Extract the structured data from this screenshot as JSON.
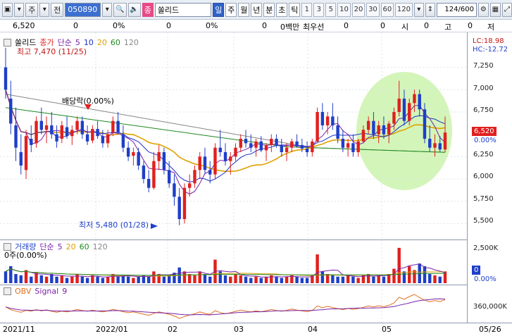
{
  "toolbar": {
    "ju_label": "주",
    "jeon_label": "전",
    "code": "050890",
    "stock_badge": "종",
    "stock_name": "쏠리드",
    "periods": [
      "일",
      "주",
      "월",
      "년",
      "분",
      "초",
      "틱"
    ],
    "active_period": "일",
    "numbers": [
      "1",
      "3",
      "5",
      "10",
      "20",
      "30",
      "60",
      "120"
    ],
    "count": "124",
    "count_total": "/600"
  },
  "infobar": {
    "price": "6,520",
    "v1": "0",
    "v1_pct": "0%",
    "v2": "0",
    "v2_pct": "0%",
    "v3": "0",
    "v3_pct": "0%",
    "amount": "0백만",
    "priority_label": "최우선",
    "v4": "0",
    "v5": "0",
    "si_label": "시",
    "si_value": "0",
    "go_label": "고",
    "go_value": "0",
    "jeo_label": "저"
  },
  "price_panel": {
    "name": "쏠리드",
    "legend": [
      "종가",
      "단순",
      "5",
      "10",
      "20",
      "60",
      "120"
    ],
    "high_label": "최고 7,470 (11/25)",
    "low_label": "최저 5,480 (01/28)",
    "dividend_label": "배당락(0.00%)",
    "lc_label": "LC:18.98",
    "hc_label": "HC:-12.72",
    "current_price": "6,520",
    "current_pct": "0.00%",
    "ticks": [
      "7,250",
      "7,000",
      "6,750",
      "6,250",
      "6,000",
      "5,750",
      "5,500"
    ]
  },
  "volume_panel": {
    "legend": [
      "거래량",
      "단순",
      "5",
      "20",
      "60",
      "120"
    ],
    "sub_label": "0주(0.00%)",
    "tick": "2,500K",
    "current": "0",
    "current_pct": "0.00%"
  },
  "obv_panel": {
    "legend": [
      "OBV",
      "Signal",
      "9"
    ],
    "tick": "360,000K"
  },
  "x_axis": [
    "2021/11",
    "2022/01",
    "02",
    "03",
    "04",
    "05",
    "05/26"
  ],
  "colors": {
    "up": "#e0201e",
    "down": "#1e3fc8",
    "ma5": "#7a22a8",
    "ma10": "#2030c8",
    "ma20": "#e0a000",
    "ma60": "#208a20",
    "ma120": "#888888",
    "highlight": "#c8f2a8"
  },
  "chart_data": {
    "type": "candlestick",
    "y_range": [
      5400,
      7500
    ],
    "candles_ohlc": [
      [
        7250,
        7470,
        6900,
        7000
      ],
      [
        6900,
        7100,
        6500,
        6620
      ],
      [
        6600,
        6800,
        6200,
        6350
      ],
      [
        6300,
        6500,
        6050,
        6150
      ],
      [
        6100,
        6550,
        6000,
        6480
      ],
      [
        6450,
        6600,
        6300,
        6380
      ],
      [
        6400,
        6700,
        6350,
        6650
      ],
      [
        6650,
        6800,
        6500,
        6550
      ],
      [
        6550,
        6700,
        6400,
        6600
      ],
      [
        6600,
        6750,
        6450,
        6500
      ],
      [
        6500,
        6600,
        6350,
        6420
      ],
      [
        6450,
        6650,
        6400,
        6600
      ],
      [
        6580,
        6700,
        6450,
        6480
      ],
      [
        6480,
        6600,
        6380,
        6550
      ],
      [
        6550,
        6700,
        6500,
        6650
      ],
      [
        6650,
        6700,
        6450,
        6500
      ],
      [
        6500,
        6600,
        6380,
        6420
      ],
      [
        6430,
        6600,
        6400,
        6560
      ],
      [
        6560,
        6650,
        6450,
        6480
      ],
      [
        6480,
        6550,
        6350,
        6400
      ],
      [
        6400,
        6550,
        6350,
        6500
      ],
      [
        6520,
        6700,
        6480,
        6650
      ],
      [
        6650,
        6750,
        6500,
        6520
      ],
      [
        6500,
        6600,
        6300,
        6350
      ],
      [
        6350,
        6420,
        6200,
        6250
      ],
      [
        6260,
        6350,
        6150,
        6300
      ],
      [
        6300,
        6350,
        6100,
        6150
      ],
      [
        6150,
        6200,
        5950,
        6000
      ],
      [
        6000,
        6100,
        5850,
        5900
      ],
      [
        5900,
        6300,
        5880,
        6200
      ],
      [
        6200,
        6380,
        6100,
        6300
      ],
      [
        6300,
        6350,
        6050,
        6100
      ],
      [
        6100,
        6200,
        5900,
        5950
      ],
      [
        5950,
        6050,
        5700,
        5800
      ],
      [
        5800,
        5900,
        5480,
        5550
      ],
      [
        5550,
        5950,
        5500,
        5900
      ],
      [
        5900,
        6050,
        5800,
        5950
      ],
      [
        5950,
        6150,
        5900,
        6100
      ],
      [
        6100,
        6300,
        6000,
        6250
      ],
      [
        6250,
        6350,
        6050,
        6100
      ],
      [
        6100,
        6200,
        5950,
        6050
      ],
      [
        6050,
        6400,
        6000,
        6350
      ],
      [
        6350,
        6550,
        6250,
        6300
      ],
      [
        6300,
        6400,
        6150,
        6200
      ],
      [
        6200,
        6300,
        6050,
        6250
      ],
      [
        6250,
        6400,
        6200,
        6350
      ],
      [
        6350,
        6500,
        6300,
        6450
      ],
      [
        6450,
        6550,
        6350,
        6400
      ],
      [
        6400,
        6500,
        6300,
        6350
      ],
      [
        6350,
        6450,
        6250,
        6420
      ],
      [
        6420,
        6480,
        6300,
        6320
      ],
      [
        6320,
        6400,
        6200,
        6380
      ],
      [
        6380,
        6500,
        6300,
        6450
      ],
      [
        6450,
        6500,
        6350,
        6380
      ],
      [
        6380,
        6450,
        6250,
        6300
      ],
      [
        6300,
        6400,
        6200,
        6350
      ],
      [
        6350,
        6450,
        6300,
        6420
      ],
      [
        6420,
        6500,
        6350,
        6380
      ],
      [
        6380,
        6450,
        6300,
        6340
      ],
      [
        6340,
        6420,
        6250,
        6300
      ],
      [
        6300,
        6450,
        6250,
        6420
      ],
      [
        6420,
        6800,
        6400,
        6750
      ],
      [
        6750,
        6850,
        6550,
        6600
      ],
      [
        6600,
        6750,
        6500,
        6700
      ],
      [
        6700,
        6850,
        6550,
        6600
      ],
      [
        6600,
        6700,
        6400,
        6450
      ],
      [
        6450,
        6550,
        6300,
        6350
      ],
      [
        6350,
        6450,
        6250,
        6400
      ],
      [
        6400,
        6500,
        6250,
        6300
      ],
      [
        6300,
        6450,
        6250,
        6420
      ],
      [
        6420,
        6600,
        6400,
        6550
      ],
      [
        6550,
        6700,
        6500,
        6650
      ],
      [
        6650,
        6750,
        6450,
        6500
      ],
      [
        6500,
        6650,
        6400,
        6600
      ],
      [
        6600,
        6700,
        6450,
        6500
      ],
      [
        6500,
        6650,
        6400,
        6620
      ],
      [
        6620,
        6800,
        6550,
        6750
      ],
      [
        6750,
        7100,
        6700,
        6900
      ],
      [
        6900,
        7000,
        6600,
        6650
      ],
      [
        6650,
        6900,
        6600,
        6850
      ],
      [
        6850,
        7000,
        6750,
        6950
      ],
      [
        6950,
        7000,
        6700,
        6780
      ],
      [
        6780,
        6850,
        6400,
        6450
      ],
      [
        6450,
        6600,
        6300,
        6350
      ],
      [
        6350,
        6500,
        6250,
        6400
      ],
      [
        6400,
        6480,
        6300,
        6330
      ],
      [
        6330,
        6700,
        6300,
        6520
      ]
    ],
    "volume_k": [
      900,
      1300,
      700,
      600,
      1000,
      500,
      800,
      600,
      500,
      700,
      500,
      600,
      400,
      500,
      700,
      500,
      400,
      600,
      500,
      400,
      500,
      700,
      500,
      600,
      500,
      400,
      500,
      600,
      500,
      900,
      700,
      500,
      600,
      800,
      1200,
      900,
      700,
      600,
      900,
      700,
      500,
      1800,
      900,
      600,
      500,
      700,
      600,
      500,
      400,
      500,
      400,
      500,
      600,
      500,
      400,
      500,
      600,
      500,
      400,
      400,
      600,
      2200,
      900,
      700,
      600,
      500,
      500,
      600,
      500,
      400,
      600,
      700,
      500,
      600,
      500,
      700,
      1100,
      2700,
      900,
      1300,
      1000,
      1500,
      1300,
      700,
      600,
      500,
      900
    ]
  }
}
